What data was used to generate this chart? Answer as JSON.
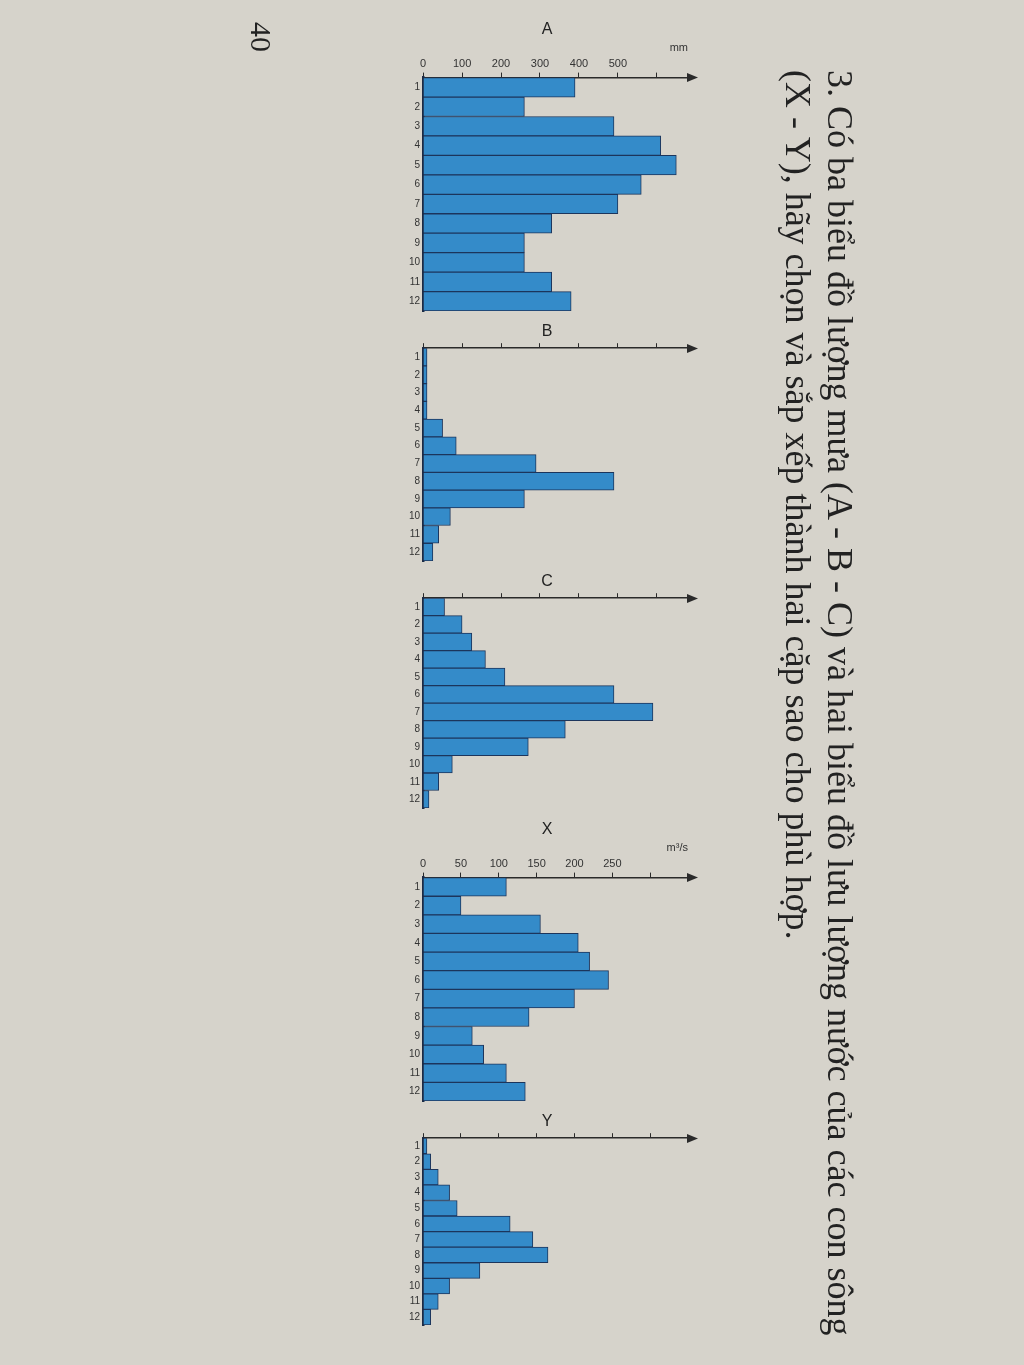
{
  "chart_data": [
    {
      "type": "other",
      "title": "3. Có ba biểu đồ lượng mưa (A - B - C) và hai biểu đồ lưu lượng nước của các con sông (X - Y), hãy chọn và sắp xếp thành hai cặp sao cho phù hợp."
    },
    {
      "type": "bar",
      "orientation": "horizontal",
      "title": "A",
      "xlabel": "mm",
      "categories": [
        "1",
        "2",
        "3",
        "4",
        "5",
        "6",
        "7",
        "8",
        "9",
        "10",
        "11",
        "12"
      ],
      "values": [
        390,
        260,
        490,
        610,
        650,
        560,
        500,
        330,
        260,
        260,
        330,
        380
      ],
      "color": "#348bc9",
      "xlim": [
        0,
        680
      ],
      "xticks": [
        0,
        100,
        200,
        300,
        400,
        500,
        {
          "value": 600,
          "label": null
        }
      ]
    },
    {
      "type": "bar",
      "orientation": "horizontal",
      "title": "B",
      "categories": [
        "1",
        "2",
        "3",
        "4",
        "5",
        "6",
        "7",
        "8",
        "9",
        "10",
        "11",
        "12"
      ],
      "values": [
        10,
        10,
        10,
        10,
        50,
        85,
        290,
        490,
        260,
        70,
        40,
        25
      ],
      "color": "#348bc9",
      "xlim": [
        0,
        680
      ],
      "xticks": [
        0,
        100,
        200,
        300,
        400,
        500,
        600
      ],
      "tick_labels": "y"
    },
    {
      "type": "bar",
      "orientation": "horizontal",
      "title": "C",
      "categories": [
        "1",
        "2",
        "3",
        "4",
        "5",
        "6",
        "7",
        "8",
        "9",
        "10",
        "11",
        "12"
      ],
      "values": [
        55,
        100,
        125,
        160,
        210,
        490,
        590,
        365,
        270,
        75,
        40,
        15
      ],
      "color": "#348bc9",
      "xlim": [
        0,
        680
      ],
      "xticks": [
        0,
        100,
        200,
        300,
        400,
        500,
        600
      ],
      "tick_labels": "y"
    },
    {
      "type": "bar",
      "orientation": "horizontal",
      "title": "X",
      "xlabel": "m³/s",
      "categories": [
        "1",
        "2",
        "3",
        "4",
        "5",
        "6",
        "7",
        "8",
        "9",
        "10",
        "11",
        "12"
      ],
      "values": [
        110,
        50,
        155,
        205,
        220,
        245,
        200,
        140,
        65,
        80,
        110,
        135
      ],
      "color": "#348bc9",
      "xlim": [
        0,
        350
      ],
      "xticks": [
        0,
        50,
        100,
        150,
        200,
        250,
        {
          "value": 300,
          "label": null
        }
      ]
    },
    {
      "type": "bar",
      "orientation": "horizontal",
      "title": "Y",
      "categories": [
        "1",
        "2",
        "3",
        "4",
        "5",
        "6",
        "7",
        "8",
        "9",
        "10",
        "11",
        "12"
      ],
      "values": [
        5,
        10,
        20,
        35,
        45,
        115,
        145,
        165,
        75,
        35,
        20,
        10
      ],
      "color": "#348bc9",
      "xlim": [
        0,
        350
      ],
      "xticks": [
        0,
        50,
        100,
        150,
        200,
        250,
        300
      ],
      "tick_labels": "y"
    },
    {
      "type": "other",
      "annotations": [
        "40"
      ]
    }
  ]
}
